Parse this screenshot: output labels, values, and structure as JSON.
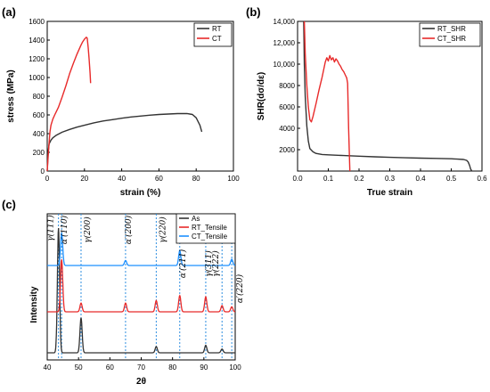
{
  "chart_data": [
    {
      "panel": "(a)",
      "type": "line",
      "xlabel": "strain (%)",
      "ylabel": "stress (MPa)",
      "xlim": [
        0,
        100
      ],
      "ylim": [
        0,
        1600
      ],
      "xticks": [
        0,
        20,
        40,
        60,
        80,
        100
      ],
      "yticks": [
        0,
        200,
        400,
        600,
        800,
        1000,
        1200,
        1400,
        1600
      ],
      "grid": false,
      "legend": "top-right",
      "series": [
        {
          "name": "RT",
          "color": "#333333",
          "x": [
            0,
            0.5,
            1,
            2,
            3,
            5,
            8,
            12,
            16,
            20,
            25,
            30,
            35,
            40,
            45,
            50,
            55,
            60,
            65,
            70,
            75,
            78,
            80,
            82,
            83
          ],
          "y": [
            0,
            200,
            290,
            330,
            355,
            385,
            415,
            445,
            470,
            490,
            515,
            535,
            550,
            565,
            578,
            588,
            597,
            605,
            610,
            614,
            615,
            605,
            570,
            490,
            420
          ]
        },
        {
          "name": "CT",
          "color": "#e82a2a",
          "x": [
            0,
            0.5,
            1,
            1.5,
            2,
            3,
            4,
            6,
            8,
            10,
            12,
            14,
            16,
            18,
            19,
            20,
            21,
            21.5,
            22,
            22.5,
            23,
            23.3
          ],
          "y": [
            0,
            150,
            300,
            420,
            490,
            555,
            600,
            680,
            790,
            910,
            1040,
            1150,
            1250,
            1340,
            1380,
            1410,
            1430,
            1420,
            1320,
            1200,
            1050,
            940
          ]
        }
      ]
    },
    {
      "panel": "(b)",
      "type": "line",
      "xlabel": "True strain",
      "ylabel": "SHR(dσ/dε)",
      "xlim": [
        0,
        0.6
      ],
      "ylim": [
        0,
        14000
      ],
      "xticks": [
        0.0,
        0.1,
        0.2,
        0.3,
        0.4,
        0.5,
        0.6
      ],
      "xtick_labels": [
        "0.0",
        "0.1",
        "0.2",
        "0.3",
        "0.4",
        "0.5",
        "0.6"
      ],
      "yticks": [
        2000,
        4000,
        6000,
        8000,
        10000,
        12000,
        14000
      ],
      "ytick_labels": [
        "2000",
        "4000",
        "6000",
        "8000",
        "10,000",
        "12,000",
        "14,000"
      ],
      "grid": false,
      "legend": "top-right",
      "series": [
        {
          "name": "RT_SHR",
          "color": "#333333",
          "x": [
            0.02,
            0.022,
            0.025,
            0.03,
            0.035,
            0.04,
            0.05,
            0.06,
            0.08,
            0.1,
            0.15,
            0.2,
            0.25,
            0.3,
            0.35,
            0.4,
            0.45,
            0.5,
            0.52,
            0.54,
            0.55,
            0.555,
            0.56,
            0.563,
            0.567
          ],
          "y": [
            14000,
            10000,
            7000,
            4200,
            2800,
            2100,
            1800,
            1650,
            1550,
            1520,
            1450,
            1390,
            1330,
            1280,
            1240,
            1210,
            1180,
            1150,
            1120,
            1080,
            1000,
            850,
            500,
            200,
            0
          ]
        },
        {
          "name": "CT_SHR",
          "color": "#e82a2a",
          "x": [
            0.022,
            0.025,
            0.03,
            0.035,
            0.04,
            0.045,
            0.05,
            0.06,
            0.07,
            0.08,
            0.09,
            0.095,
            0.1,
            0.105,
            0.11,
            0.115,
            0.12,
            0.125,
            0.13,
            0.135,
            0.14,
            0.145,
            0.15,
            0.155,
            0.16,
            0.163,
            0.166,
            0.17
          ],
          "y": [
            14000,
            11000,
            8000,
            6000,
            4800,
            4600,
            5100,
            6300,
            7600,
            8800,
            10200,
            10600,
            10300,
            10800,
            10400,
            10600,
            10200,
            10500,
            10300,
            10000,
            9800,
            9500,
            9300,
            9000,
            8700,
            8200,
            4000,
            0
          ]
        }
      ]
    },
    {
      "panel": "(c)",
      "type": "line",
      "xlabel": "2θ",
      "ylabel": "Intensity",
      "xlim": [
        40,
        100
      ],
      "xticks": [
        40,
        50,
        60,
        70,
        80,
        90,
        100
      ],
      "grid": false,
      "legend": "top-right",
      "series": [
        {
          "name": "As",
          "color": "#333333",
          "peaks": [
            {
              "x": 43.6,
              "height": 1.0
            },
            {
              "x": 50.8,
              "height": 0.28
            },
            {
              "x": 74.8,
              "height": 0.05
            },
            {
              "x": 90.6,
              "height": 0.06
            },
            {
              "x": 95.8,
              "height": 0.03
            }
          ]
        },
        {
          "name": "RT_Tensile",
          "color": "#e82a2a",
          "peaks": [
            {
              "x": 44.6,
              "height": 0.42
            },
            {
              "x": 50.8,
              "height": 0.07
            },
            {
              "x": 65.0,
              "height": 0.07
            },
            {
              "x": 74.8,
              "height": 0.09
            },
            {
              "x": 82.3,
              "height": 0.13
            },
            {
              "x": 90.6,
              "height": 0.12
            },
            {
              "x": 95.8,
              "height": 0.05
            },
            {
              "x": 98.9,
              "height": 0.04
            }
          ]
        },
        {
          "name": "CT_Tensile",
          "color": "#1e90ff",
          "peaks": [
            {
              "x": 44.6,
              "height": 0.26
            },
            {
              "x": 65.0,
              "height": 0.04
            },
            {
              "x": 82.3,
              "height": 0.12
            },
            {
              "x": 98.9,
              "height": 0.05
            }
          ]
        }
      ],
      "peak_labels": [
        {
          "text": "γ(111)",
          "x": 43.6
        },
        {
          "text": "α′(110)",
          "x": 44.6
        },
        {
          "text": "γ(200)",
          "x": 50.8
        },
        {
          "text": "α′(200)",
          "x": 65.0
        },
        {
          "text": "γ(220)",
          "x": 74.8
        },
        {
          "text": "α′(211)",
          "x": 82.3
        },
        {
          "text": "γ(311)",
          "x": 90.6
        },
        {
          "text": "γ(222)",
          "x": 95.8
        },
        {
          "text": "α′(220)",
          "x": 98.9
        }
      ]
    }
  ]
}
